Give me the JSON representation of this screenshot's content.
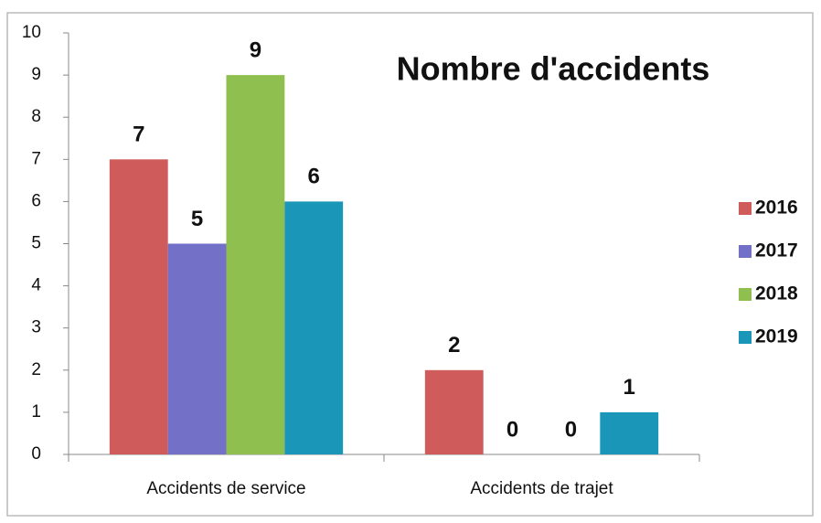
{
  "chart_data": {
    "type": "bar",
    "title": "Nombre d'accidents",
    "categories": [
      "Accidents de service",
      "Accidents de trajet"
    ],
    "series": [
      {
        "name": "2016",
        "color": "#cf5b5b",
        "values": [
          7,
          2
        ]
      },
      {
        "name": "2017",
        "color": "#7370c8",
        "values": [
          5,
          0
        ]
      },
      {
        "name": "2018",
        "color": "#8fbf4f",
        "values": [
          9,
          0
        ]
      },
      {
        "name": "2019",
        "color": "#1a96b9",
        "values": [
          6,
          1
        ]
      }
    ],
    "ylim": [
      0,
      10
    ],
    "yticks": [
      0,
      1,
      2,
      3,
      4,
      5,
      6,
      7,
      8,
      9,
      10
    ],
    "legend": "right",
    "grid": false
  }
}
